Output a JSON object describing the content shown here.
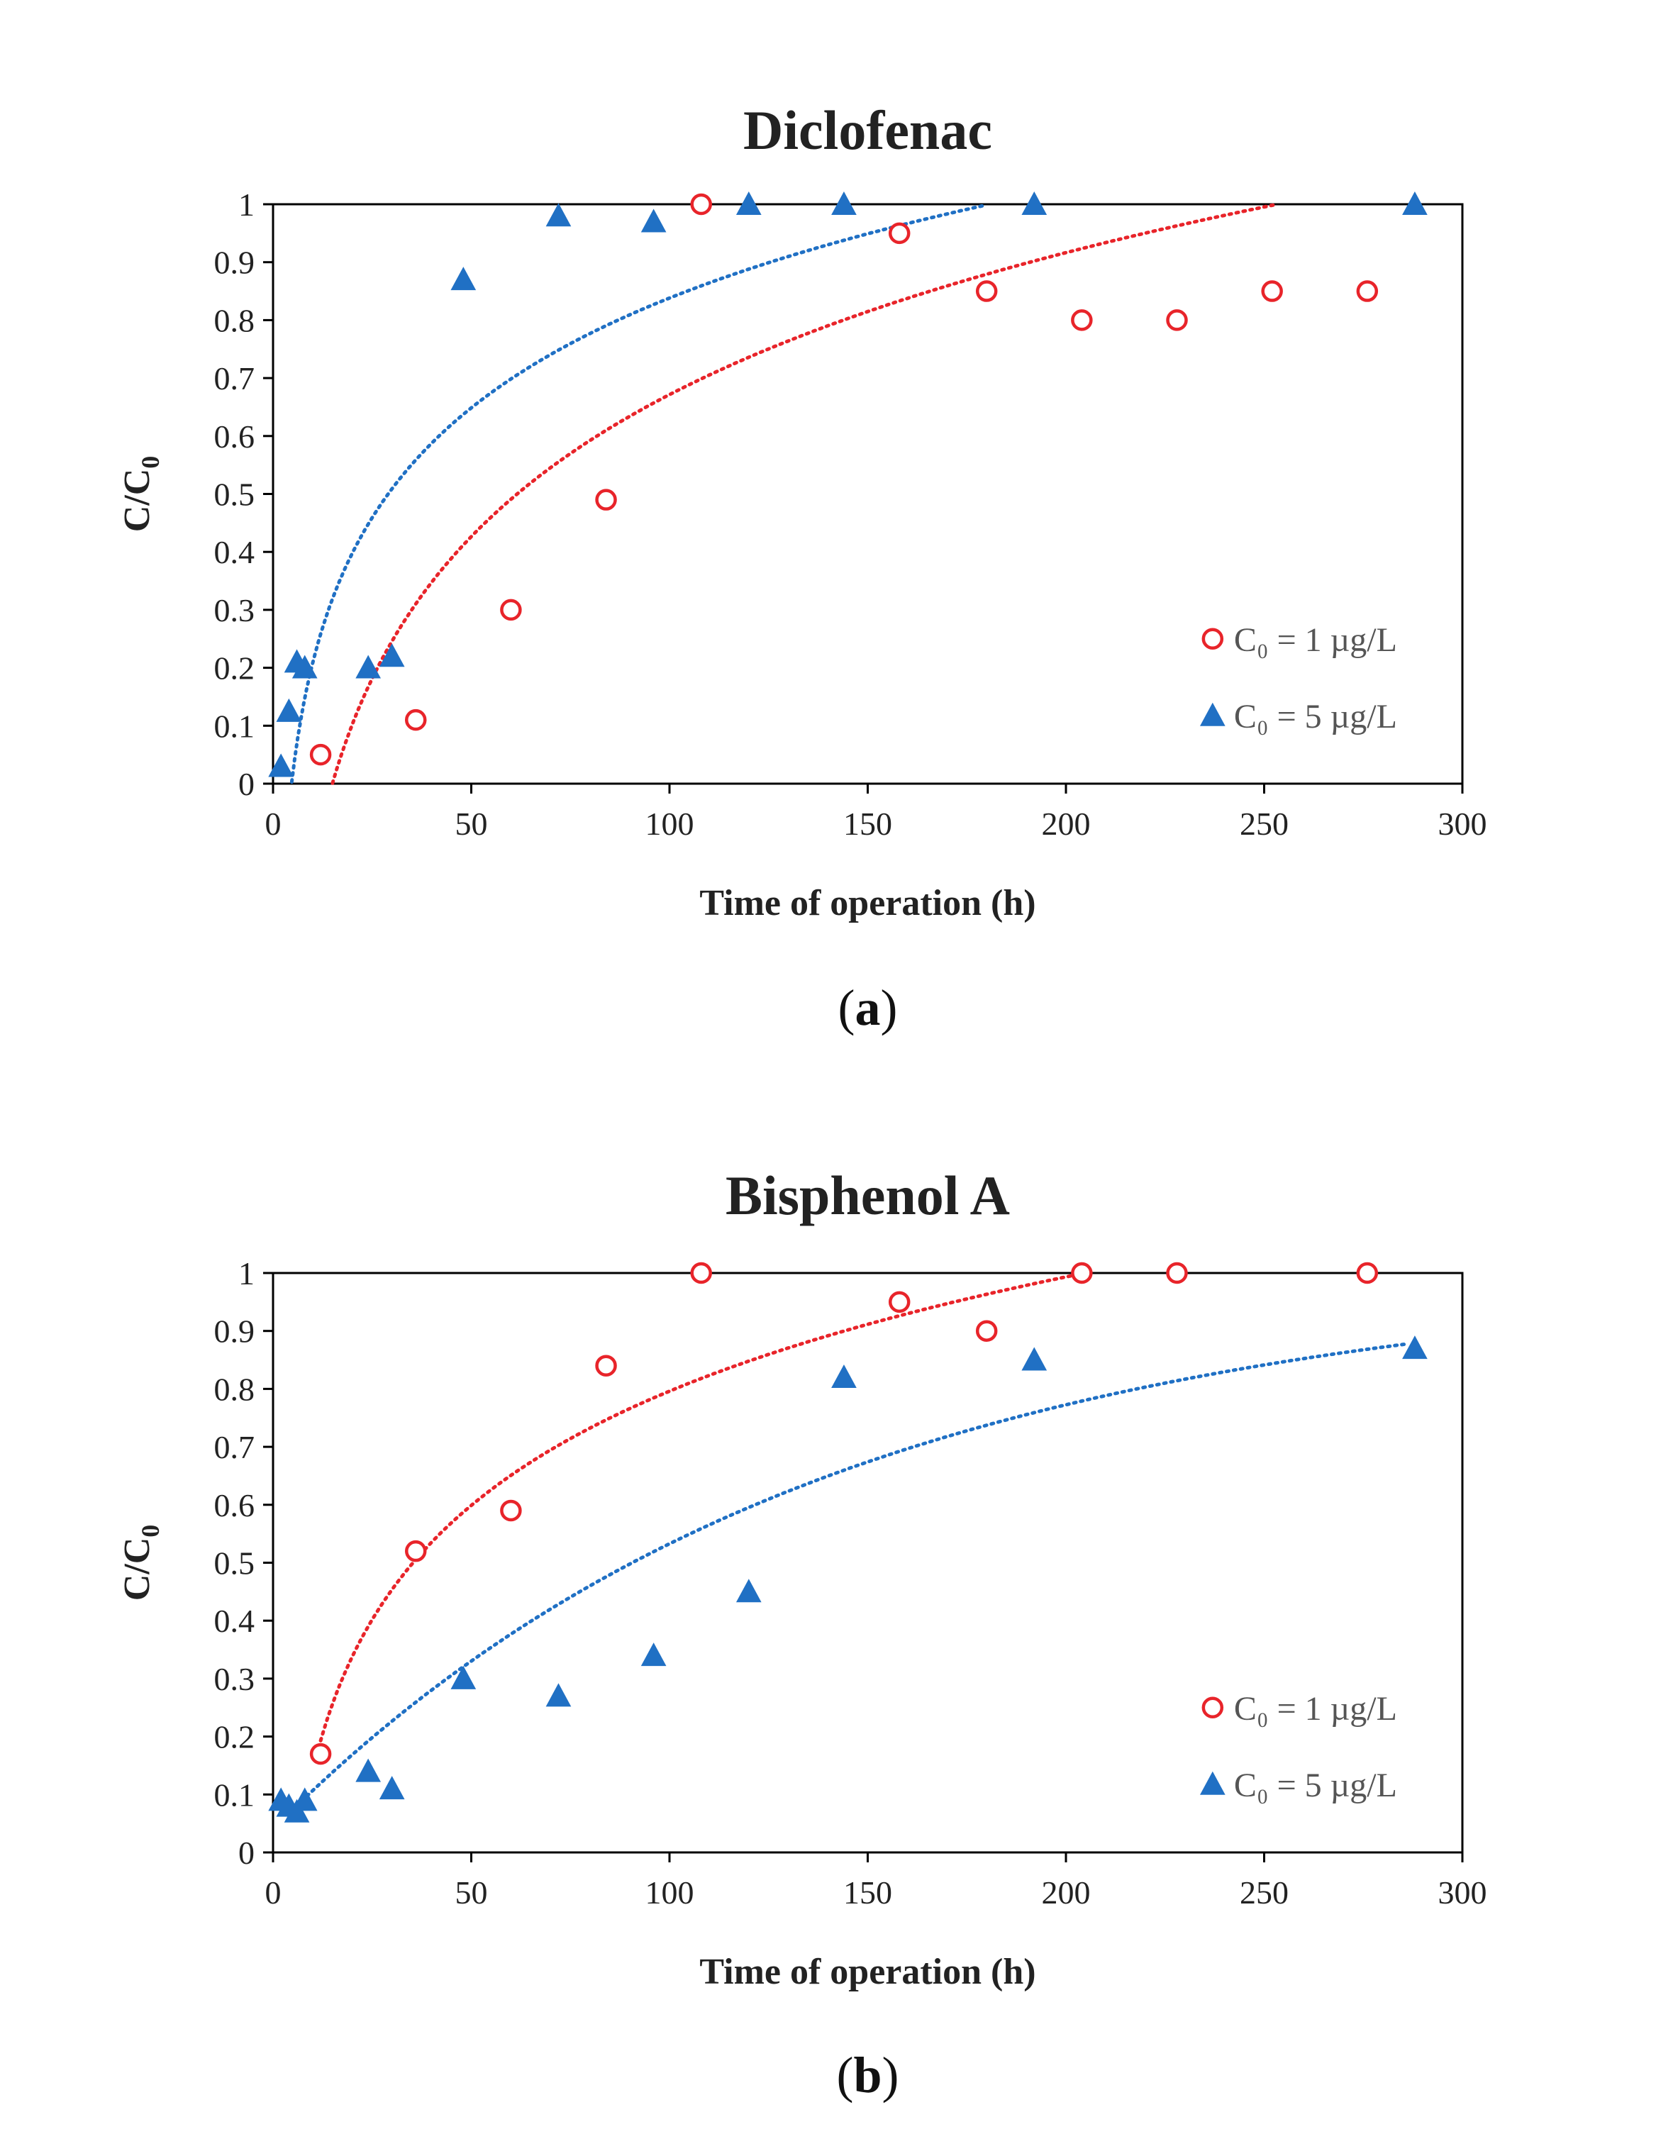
{
  "colors": {
    "red": "#e8242a",
    "blue": "#2070c4",
    "axis": "#000000",
    "text": "#222222"
  },
  "chart_data": [
    {
      "type": "scatter",
      "panel": "a",
      "title": "Diclofenac",
      "caption_letter": "a",
      "xlabel": "Time of operation (h)",
      "ylabel_main": "C/C",
      "ylabel_sub": "0",
      "xlim": [
        0,
        300
      ],
      "ylim": [
        0,
        1
      ],
      "x_ticks": [
        "0",
        "50",
        "100",
        "150",
        "200",
        "250",
        "300"
      ],
      "y_ticks": [
        "0",
        "0.1",
        "0.2",
        "0.3",
        "0.4",
        "0.5",
        "0.6",
        "0.7",
        "0.8",
        "0.9",
        "1"
      ],
      "legend_position": "bottom-right",
      "series": [
        {
          "name": "C₀ = 1 µg/L",
          "marker": "open-circle",
          "color": "#e8242a",
          "x": [
            12,
            36,
            60,
            84,
            108,
            158,
            180,
            204,
            228,
            252,
            276
          ],
          "y": [
            0.05,
            0.11,
            0.3,
            0.49,
            1.0,
            0.95,
            0.85,
            0.8,
            0.8,
            0.85,
            0.85
          ],
          "trend": {
            "type": "log",
            "a": 0.3535,
            "b": -0.9565,
            "x_start": 15,
            "x_end": 276
          }
        },
        {
          "name": "C₀ = 5 µg/L",
          "marker": "filled-triangle",
          "color": "#2070c4",
          "x": [
            2,
            4,
            6,
            8,
            24,
            30,
            48,
            72,
            96,
            120,
            144,
            192,
            288
          ],
          "y": [
            0.03,
            0.125,
            0.21,
            0.2,
            0.2,
            0.22,
            0.87,
            0.98,
            0.97,
            1.0,
            1.0,
            1.0,
            1.0
          ],
          "trend": {
            "type": "log",
            "a": 0.2735,
            "b": -0.4214,
            "x_start": 2.5,
            "x_end": 180
          }
        }
      ]
    },
    {
      "type": "scatter",
      "panel": "b",
      "title": "Bisphenol A",
      "caption_letter": "b",
      "xlabel": "Time of operation (h)",
      "ylabel_main": "C/C",
      "ylabel_sub": "0",
      "xlim": [
        0,
        300
      ],
      "ylim": [
        0,
        1
      ],
      "x_ticks": [
        "0",
        "50",
        "100",
        "150",
        "200",
        "250",
        "300"
      ],
      "y_ticks": [
        "0",
        "0.1",
        "0.2",
        "0.3",
        "0.4",
        "0.5",
        "0.6",
        "0.7",
        "0.8",
        "0.9",
        "1"
      ],
      "legend_position": "bottom-right",
      "series": [
        {
          "name": "C₀ = 1 µg/L",
          "marker": "open-circle",
          "color": "#e8242a",
          "x": [
            12,
            36,
            60,
            84,
            108,
            158,
            180,
            204,
            228,
            276
          ],
          "y": [
            0.17,
            0.52,
            0.59,
            0.84,
            1.0,
            0.95,
            0.9,
            1.0,
            1.0,
            1.0
          ],
          "trend": {
            "type": "log",
            "a": 0.2845,
            "b": -0.5141,
            "x_start": 12,
            "x_end": 204
          }
        },
        {
          "name": "C₀ = 5 µg/L",
          "marker": "filled-triangle",
          "color": "#2070c4",
          "x": [
            2,
            4,
            6,
            8,
            24,
            30,
            48,
            72,
            96,
            120,
            144,
            192,
            288
          ],
          "y": [
            0.09,
            0.08,
            0.07,
            0.09,
            0.14,
            0.11,
            0.3,
            0.27,
            0.34,
            0.45,
            0.82,
            0.85,
            0.87
          ],
          "trend": {
            "type": "exp-rise",
            "a": 0.04,
            "b": 1.0,
            "k": 0.0072,
            "x_start": 6,
            "x_end": 286
          }
        }
      ]
    }
  ]
}
